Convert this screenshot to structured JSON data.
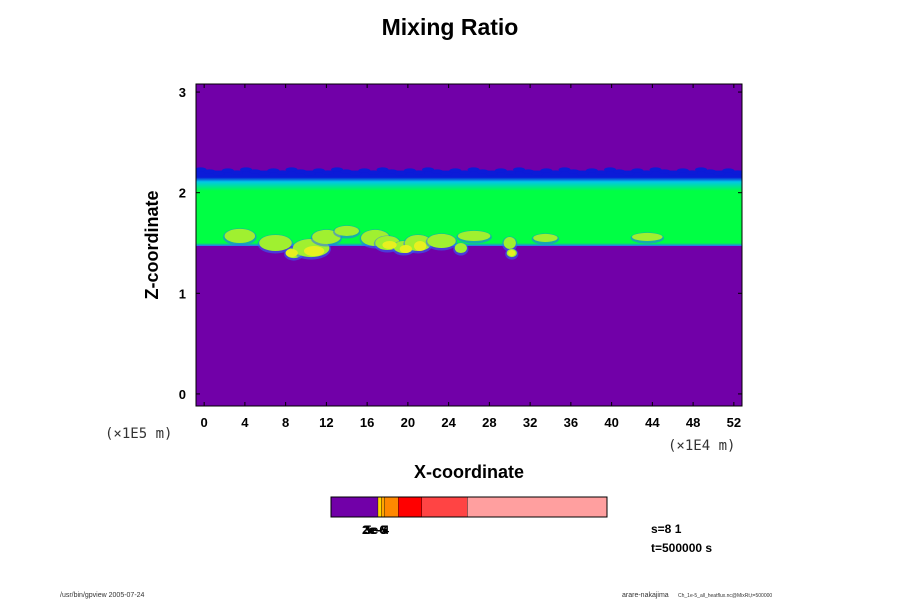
{
  "chart_data": {
    "type": "heatmap",
    "title": "Mixing Ratio",
    "xlabel": "X-coordinate",
    "ylabel": "Z-coordinate",
    "x_unit": "(×1E4 m)",
    "y_unit": "(×1E5 m)",
    "xlim": [
      -0.8,
      52.8
    ],
    "ylim": [
      -0.12,
      3.08
    ],
    "x_ticks": [
      0,
      4,
      8,
      12,
      16,
      20,
      24,
      28,
      32,
      36,
      40,
      44,
      48,
      52
    ],
    "y_ticks": [
      0,
      1,
      2,
      3
    ],
    "colors": {
      "background": "#7100a8",
      "layer": "#00ff44",
      "top_edge": "#0b1bd8",
      "transition": "#00c8e6",
      "bottom_edge": "#2a6bff",
      "blob_light": "#a0f030",
      "blob_core": "#e8f020"
    },
    "layer": {
      "z_top": 2.22,
      "z_top_transition": 2.1,
      "z_bottom": 1.47
    },
    "blobs": [
      {
        "x": 3.5,
        "z": 1.57,
        "rx": 1.5,
        "rz": 0.07
      },
      {
        "x": 7.0,
        "z": 1.5,
        "rx": 1.6,
        "rz": 0.08
      },
      {
        "x": 8.8,
        "z": 1.4,
        "rx": 0.8,
        "rz": 0.05
      },
      {
        "x": 10.5,
        "z": 1.45,
        "rx": 1.8,
        "rz": 0.09
      },
      {
        "x": 12.0,
        "z": 1.56,
        "rx": 1.4,
        "rz": 0.07
      },
      {
        "x": 14.0,
        "z": 1.62,
        "rx": 1.2,
        "rz": 0.05
      },
      {
        "x": 16.8,
        "z": 1.55,
        "rx": 1.4,
        "rz": 0.08
      },
      {
        "x": 18.0,
        "z": 1.5,
        "rx": 1.2,
        "rz": 0.07
      },
      {
        "x": 19.6,
        "z": 1.46,
        "rx": 1.0,
        "rz": 0.06
      },
      {
        "x": 21.0,
        "z": 1.5,
        "rx": 1.3,
        "rz": 0.08
      },
      {
        "x": 23.3,
        "z": 1.52,
        "rx": 1.4,
        "rz": 0.07
      },
      {
        "x": 25.2,
        "z": 1.45,
        "rx": 0.6,
        "rz": 0.05
      },
      {
        "x": 26.5,
        "z": 1.57,
        "rx": 1.6,
        "rz": 0.05
      },
      {
        "x": 30.0,
        "z": 1.5,
        "rx": 0.6,
        "rz": 0.06
      },
      {
        "x": 30.2,
        "z": 1.4,
        "rx": 0.5,
        "rz": 0.04
      },
      {
        "x": 33.5,
        "z": 1.55,
        "rx": 1.2,
        "rz": 0.04
      },
      {
        "x": 43.5,
        "z": 1.56,
        "rx": 1.5,
        "rz": 0.04
      }
    ],
    "blob_cores": [
      {
        "x": 8.6,
        "z": 1.4,
        "rx": 0.6,
        "rz": 0.04
      },
      {
        "x": 10.8,
        "z": 1.42,
        "rx": 1.0,
        "rz": 0.05
      },
      {
        "x": 18.2,
        "z": 1.48,
        "rx": 0.7,
        "rz": 0.04
      },
      {
        "x": 19.8,
        "z": 1.44,
        "rx": 0.6,
        "rz": 0.04
      },
      {
        "x": 21.2,
        "z": 1.47,
        "rx": 0.6,
        "rz": 0.05
      },
      {
        "x": 30.2,
        "z": 1.4,
        "rx": 0.35,
        "rz": 0.03
      }
    ]
  },
  "colorbar": {
    "segments": [
      {
        "color": "#7100a8",
        "fraction": 0.17
      },
      {
        "color": "#ffd700",
        "fraction": 0.012
      },
      {
        "color": "#ffa500",
        "fraction": 0.012
      },
      {
        "color": "#ff8800",
        "fraction": 0.05
      },
      {
        "color": "#ff0000",
        "fraction": 0.085
      },
      {
        "color": "#ff4444",
        "fraction": 0.165
      },
      {
        "color": "#ff9f9f",
        "fraction": 0.506
      }
    ],
    "labels": [
      "2e-6",
      "3e-5",
      "5e-4"
    ]
  },
  "info": {
    "s_text": "s=8 1",
    "t_text": "t=500000 s"
  },
  "footer": {
    "left": "/usr/bin/gpview 2005-07-24",
    "right_main": "arare-nakajima",
    "right_small": "Ch_1e-5_all_heatflux.nc@MixRt,t=500000"
  }
}
